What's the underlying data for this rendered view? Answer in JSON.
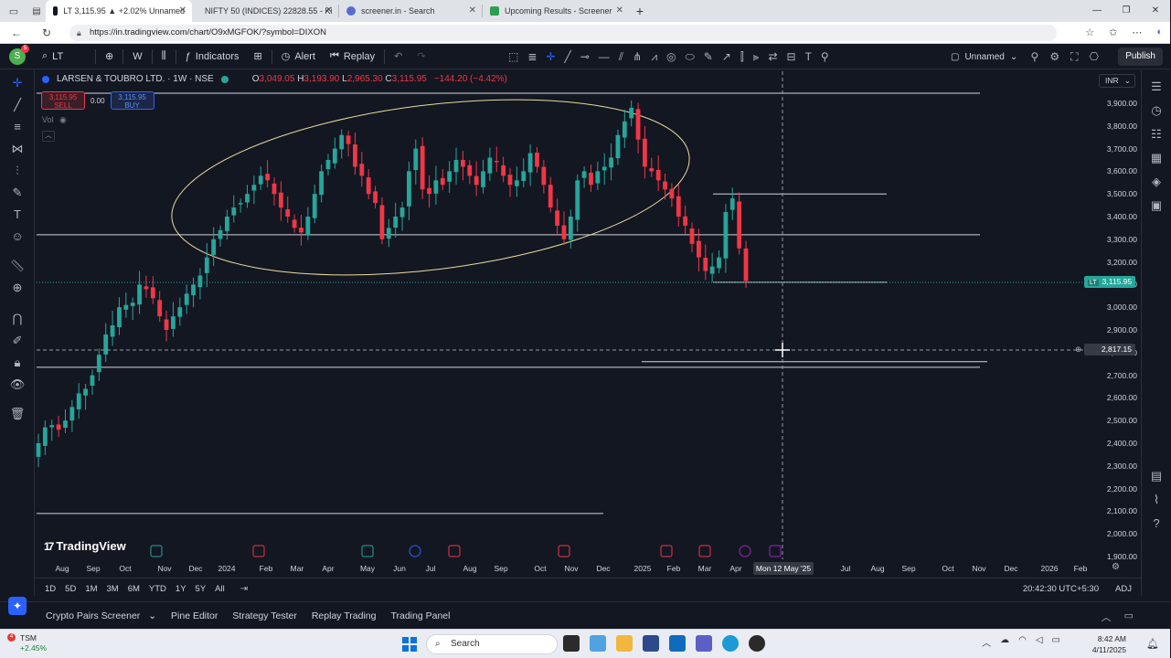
{
  "browser": {
    "tabs": [
      {
        "label": "LT 3,115.95 ▲ +2.02% Unnamed",
        "active": true,
        "color": "#131722"
      },
      {
        "label": "NIFTY 50 (INDICES) 22828.55 - Ki",
        "active": false,
        "color": "#d62d2d"
      },
      {
        "label": "screener.in - Search",
        "active": false,
        "color": "#5b6bd6"
      },
      {
        "label": "Upcoming Results - Screener",
        "active": false,
        "color": "#2e9e55"
      }
    ],
    "new_tab": "+",
    "url": "https://in.tradingview.com/chart/O9xMGFOK/?symbol=DIXON"
  },
  "toolbar": {
    "avatar_letter": "S",
    "avatar_badge": "5",
    "symbol": "LT",
    "interval": "W",
    "indicators": "Indicators",
    "alert": "Alert",
    "replay": "Replay",
    "layout_name": "Unnamed",
    "publish": "Publish"
  },
  "legend": {
    "title": "LARSEN & TOUBRO LTD. · 1W · NSE",
    "open": "3,049.05",
    "high": "3,193.90",
    "low": "2,965.30",
    "close": "3,115.95",
    "change": "−144.20 (−4.42%)",
    "sell_price": "3,115.95",
    "sell_label": "SELL",
    "spread": "0.00",
    "buy_price": "3,115.95",
    "buy_label": "BUY",
    "vol": "Vol"
  },
  "currency": "INR",
  "brand": "TradingView",
  "chart_data": {
    "type": "candlestick",
    "title": "LARSEN & TOUBRO LTD. · 1W · NSE",
    "symbol": "LT",
    "interval": "1W",
    "exchange": "NSE",
    "ylim": [
      1900,
      4000
    ],
    "y_ticks": [
      "3,900.00",
      "3,800.00",
      "3,700.00",
      "3,600.00",
      "3,500.00",
      "3,400.00",
      "3,300.00",
      "3,200.00",
      "3,100.00",
      "3,000.00",
      "2,900.00",
      "2,800.00",
      "2,700.00",
      "2,600.00",
      "2,500.00",
      "2,400.00",
      "2,300.00",
      "2,200.00",
      "2,100.00",
      "2,000.00",
      "1,900.00"
    ],
    "x_ticks": [
      "Aug",
      "Sep",
      "Oct",
      "Nov",
      "Dec",
      "2024",
      "Feb",
      "Mar",
      "Apr",
      "May",
      "Jun",
      "Jul",
      "Aug",
      "Sep",
      "Oct",
      "Nov",
      "Dec",
      "2025",
      "Feb",
      "Mar",
      "Apr",
      "Jul",
      "Aug",
      "Sep",
      "Oct",
      "Nov",
      "Dec",
      "2026",
      "Feb"
    ],
    "last_price": "3,115.95",
    "last_price_tag": "LT",
    "crosshair_price": "2,817.15",
    "crosshair_date": "Mon 12 May '25",
    "up_color": "#26a69a",
    "down_color": "#f23645",
    "closes": [
      2400,
      2470,
      2480,
      2460,
      2500,
      2560,
      2620,
      2640,
      2700,
      2790,
      2880,
      2920,
      3000,
      3010,
      3020,
      3100,
      3080,
      3040,
      2960,
      2900,
      2960,
      3000,
      3060,
      3100,
      3140,
      3220,
      3300,
      3340,
      3400,
      3440,
      3460,
      3500,
      3540,
      3580,
      3560,
      3500,
      3440,
      3400,
      3350,
      3330,
      3400,
      3500,
      3600,
      3650,
      3700,
      3760,
      3720,
      3620,
      3580,
      3500,
      3460,
      3300,
      3350,
      3400,
      3440,
      3600,
      3700,
      3520,
      3500,
      3560,
      3540,
      3600,
      3650,
      3620,
      3580,
      3540,
      3600,
      3660,
      3640,
      3580,
      3540,
      3560,
      3600,
      3680,
      3620,
      3540,
      3440,
      3360,
      3300,
      3400,
      3560,
      3600,
      3540,
      3600,
      3620,
      3660,
      3760,
      3820,
      3880,
      3740,
      3620,
      3600,
      3560,
      3520,
      3480,
      3400,
      3360,
      3280,
      3220,
      3160,
      3180,
      3220,
      3420,
      3480,
      3260,
      3115.95
    ],
    "horizontal_levels": [
      4000,
      3500,
      3320,
      3110,
      2760,
      2735,
      2090
    ],
    "annotations": [
      "ellipse drawn around 2024 consolidation range"
    ]
  },
  "timeframes": [
    "1D",
    "5D",
    "1M",
    "3M",
    "6M",
    "YTD",
    "1Y",
    "5Y",
    "All"
  ],
  "clock": "20:42:30 UTC+5:30",
  "adj": "ADJ",
  "panel_tabs": [
    "Crypto Pairs Screener",
    "Pine Editor",
    "Strategy Tester",
    "Replay Trading",
    "Trading Panel"
  ],
  "taskbar": {
    "ticker": "TSM",
    "ticker_change": "+2.45%",
    "ticker_badge": "4",
    "search": "Search",
    "time": "8:42 AM",
    "date": "4/11/2025"
  }
}
